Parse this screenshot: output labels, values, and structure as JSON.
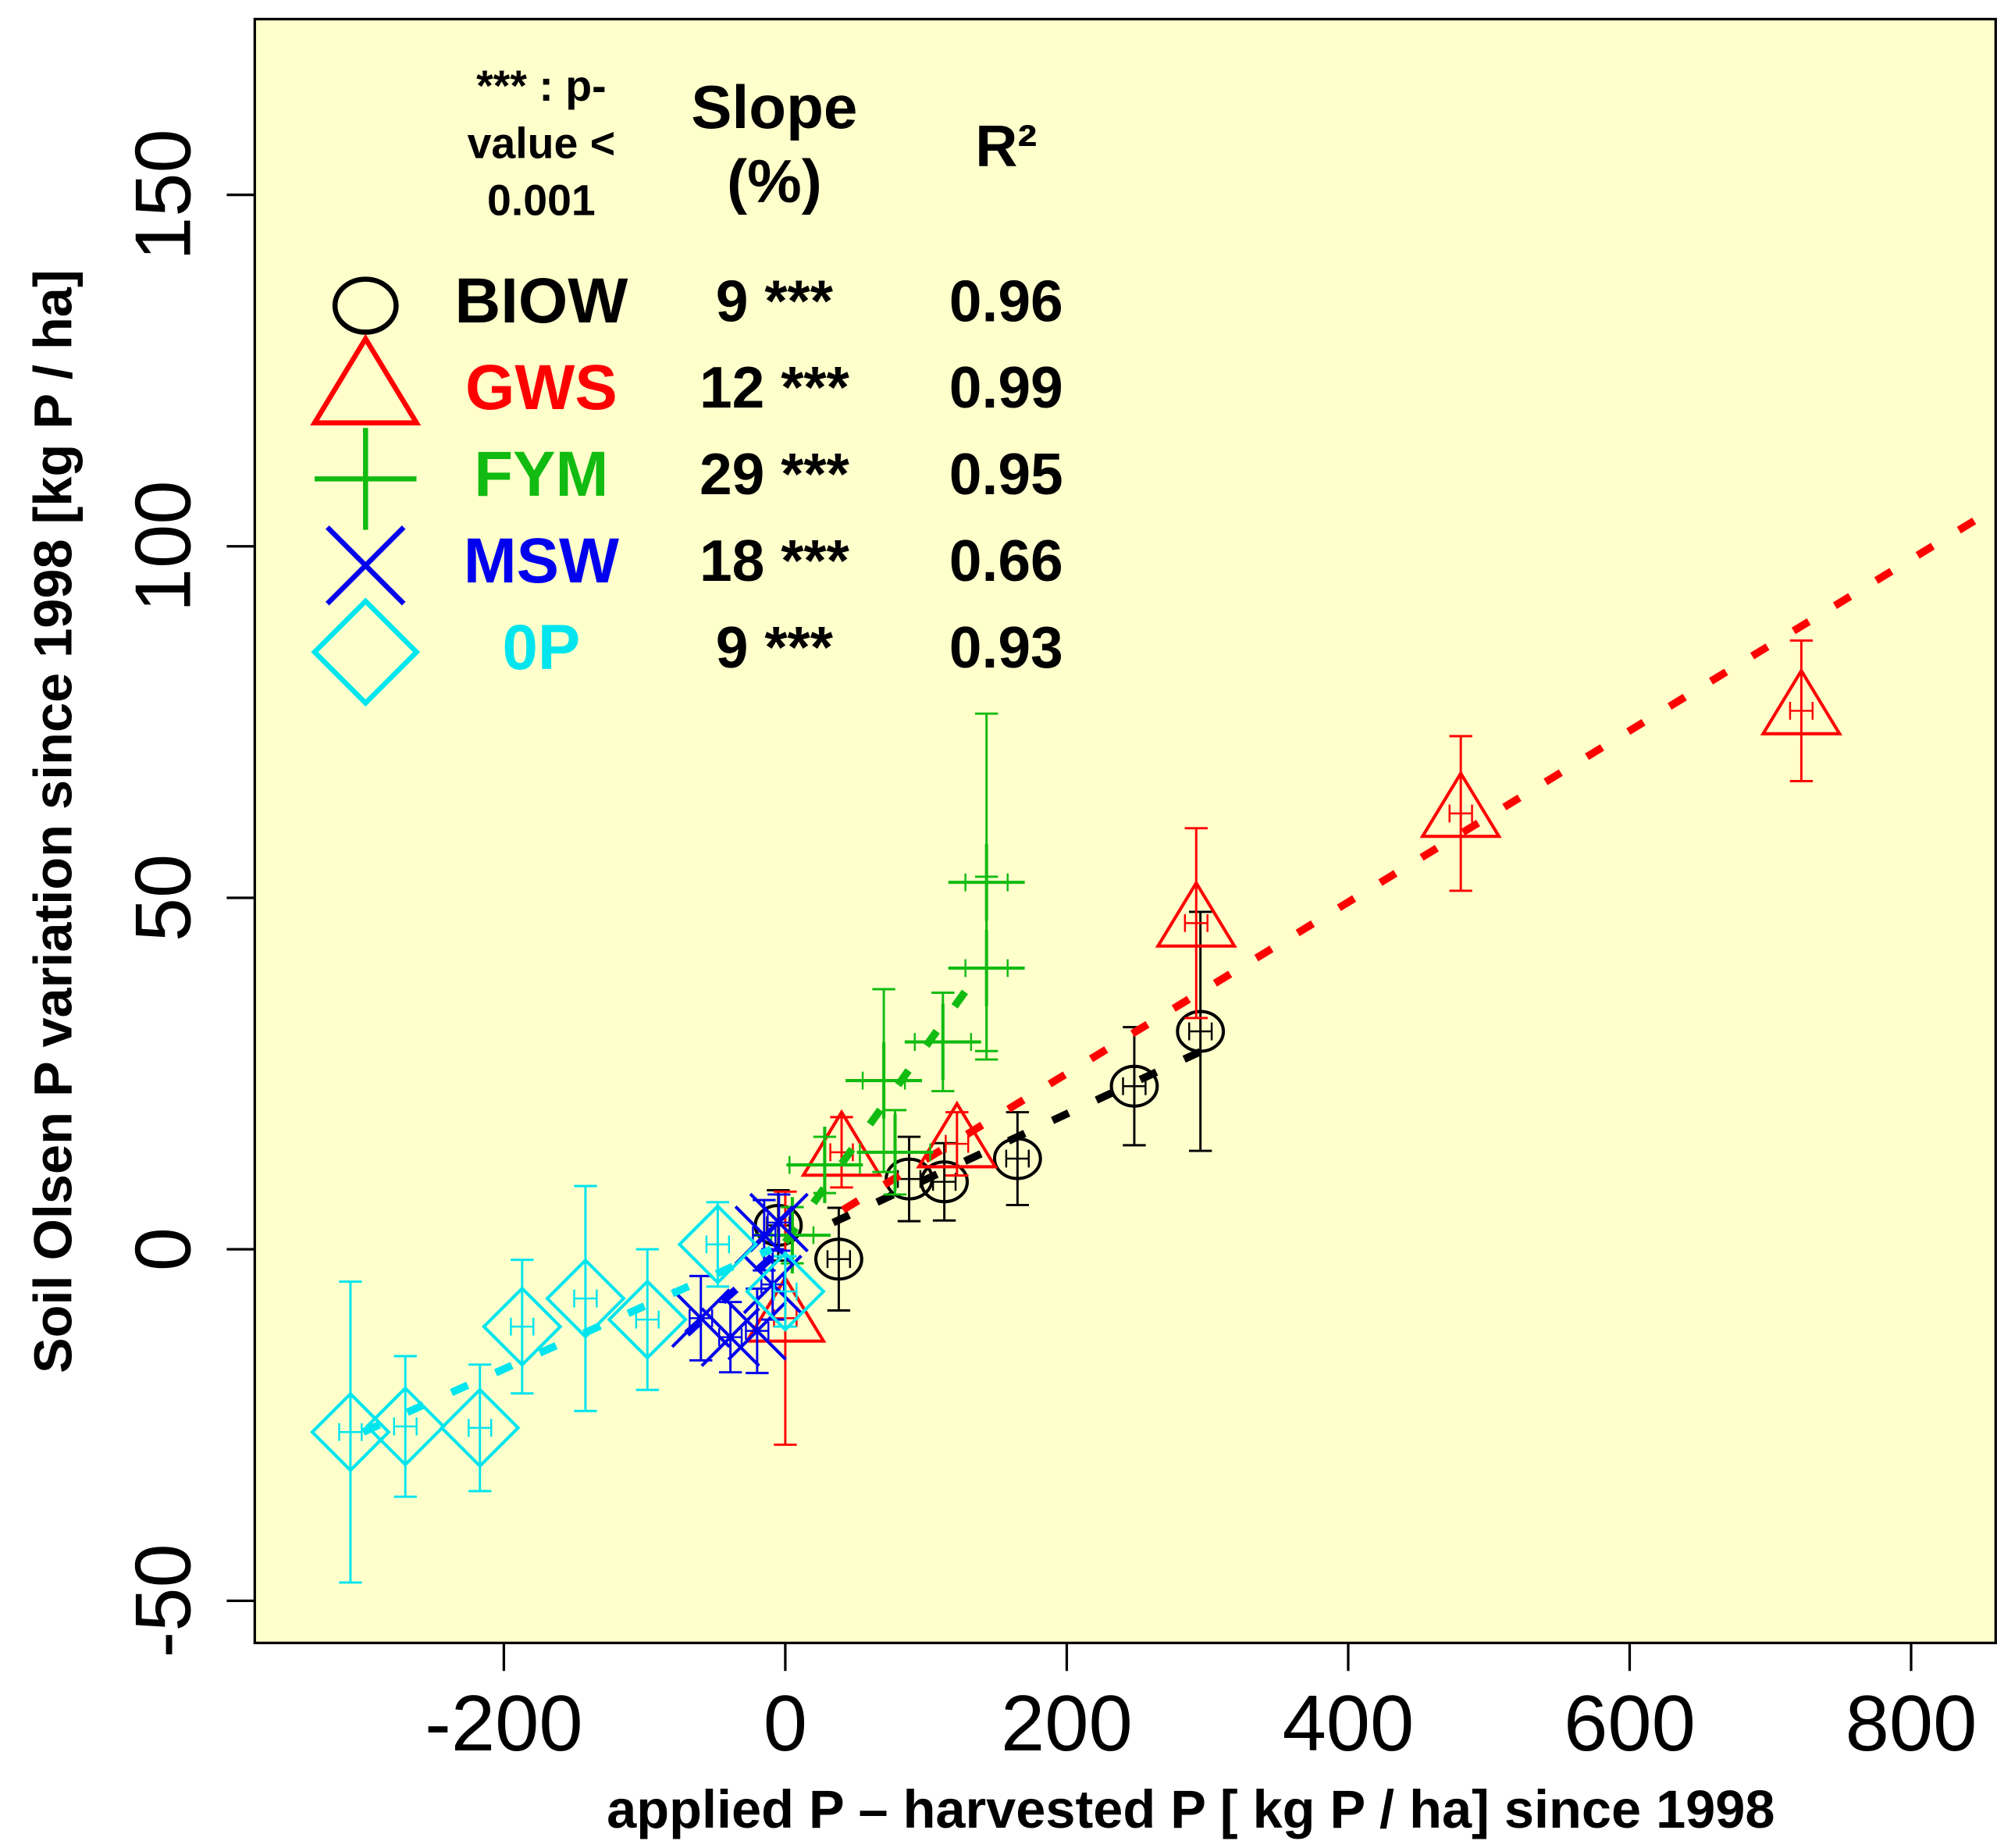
{
  "chart_data": {
    "type": "scatter",
    "x_label": "applied P – harvested P [ kg P / ha] since 1998",
    "y_label": "Soil Olsen P variation since 1998 [kg P / ha]",
    "xlim": [
      -377,
      861
    ],
    "ylim": [
      -56,
      175
    ],
    "xticks": [
      -200,
      0,
      200,
      400,
      600,
      800
    ],
    "yticks": [
      -50,
      0,
      50,
      100,
      150
    ],
    "background": "#ffffcc",
    "legend_header": {
      "pvalue": [
        "*** : p-",
        "value <",
        "0.001"
      ],
      "slope": [
        "Slope",
        "(%)"
      ],
      "r2": "R²"
    },
    "series": [
      {
        "name": "BIOW",
        "color": "#000000",
        "marker": "circle",
        "slope": 9,
        "slope_label": "9 ***",
        "r2": 0.96,
        "x": [
          -5,
          38,
          88,
          113,
          165,
          248,
          295
        ],
        "values": [
          3.4,
          -1.4,
          10,
          9.6,
          12.9,
          23.2,
          31
        ],
        "yerr": [
          5,
          7.3,
          6,
          5.5,
          6.6,
          8.4,
          17
        ],
        "xerr": [
          8,
          8,
          8,
          8,
          8,
          8,
          8
        ],
        "trend": {
          "x": [
            34,
            297
          ],
          "y": [
            3.8,
            28.3
          ]
        }
      },
      {
        "name": "GWS",
        "color": "#ff0000",
        "marker": "triangle",
        "slope": 12,
        "slope_label": "12 ***",
        "r2": 0.99,
        "x": [
          0,
          40,
          122,
          292,
          480,
          722
        ],
        "values": [
          -9.8,
          13.8,
          15,
          46.4,
          62,
          76.6
        ],
        "yerr": [
          18,
          5,
          4.5,
          13.5,
          11,
          10
        ],
        "xerr": [
          8,
          8,
          8,
          8,
          8,
          8
        ],
        "trend": {
          "x": [
            41,
            861
          ],
          "y": [
            5.6,
            105.6
          ]
        }
      },
      {
        "name": "FYM",
        "color": "#11bb11",
        "marker": "plus",
        "slope": 29,
        "slope_label": "29 ***",
        "r2": 0.95,
        "x": [
          5,
          28,
          70,
          78,
          112,
          143,
          143
        ],
        "values": [
          2,
          12,
          24,
          13.8,
          29.5,
          40,
          52.2
        ],
        "yerr": [
          4,
          4,
          13,
          6,
          7,
          13,
          24
        ],
        "xerr": [
          15,
          25,
          15,
          25,
          20,
          15,
          15
        ],
        "trend": {
          "x": [
            0,
            129
          ],
          "y": [
            1,
            37
          ]
        }
      },
      {
        "name": "MSW",
        "color": "#0000ee",
        "marker": "x",
        "slope": 18,
        "slope_label": "18 ***",
        "r2": 0.66,
        "x": [
          -60,
          -39,
          -20,
          -9,
          -15,
          -4.5
        ],
        "values": [
          -9.8,
          -12.5,
          -11.6,
          -5,
          2,
          3.8
        ],
        "yerr": [
          6,
          5,
          6,
          5,
          5,
          4
        ],
        "xerr": [
          8,
          8,
          8,
          8,
          8,
          8
        ],
        "trend": {
          "x": [
            -70,
            0
          ],
          "y": [
            -12,
            0.6
          ]
        }
      },
      {
        "name": "0P",
        "color": "#00e5ee",
        "marker": "diamond",
        "slope": 9,
        "slope_label": "9 ***",
        "r2": 0.93,
        "x": [
          -309,
          -270,
          -217,
          -187,
          -142,
          -98,
          -48,
          0
        ],
        "values": [
          -26,
          -25.2,
          -25.4,
          -11,
          -7,
          -10,
          0.7,
          -6
        ],
        "yerr": [
          21.4,
          10,
          9,
          9.5,
          16,
          10,
          6,
          5
        ],
        "xerr": [
          8,
          8,
          8,
          8,
          8,
          8,
          8,
          8
        ],
        "trend": {
          "x": [
            -300,
            -10
          ],
          "y": [
            -26,
            0
          ]
        }
      }
    ]
  }
}
